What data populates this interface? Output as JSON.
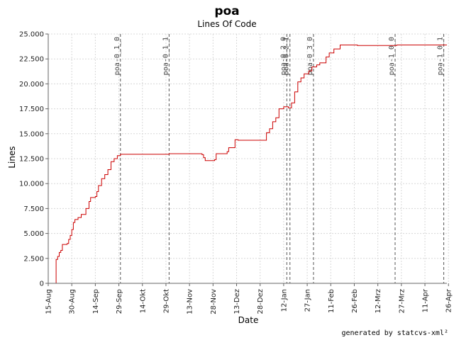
{
  "chart_data": {
    "type": "line",
    "title": "poa",
    "subtitle": "Lines Of Code",
    "xlabel": "Date",
    "ylabel": "Lines",
    "footer": "generated by statcvs-xml²",
    "x_start": "2002-08-15",
    "x_end": "2003-04-26",
    "xlim": [
      "2002-08-15",
      "2003-04-26"
    ],
    "ylim": [
      0,
      25000
    ],
    "grid": true,
    "line_color": "#cc0000",
    "x_ticks": [
      {
        "date": "2002-08-15",
        "label": "15-Aug"
      },
      {
        "date": "2002-08-30",
        "label": "30-Aug"
      },
      {
        "date": "2002-09-14",
        "label": "14-Sep"
      },
      {
        "date": "2002-09-29",
        "label": "29-Sep"
      },
      {
        "date": "2002-10-14",
        "label": "14-Okt"
      },
      {
        "date": "2002-10-29",
        "label": "29-Okt"
      },
      {
        "date": "2002-11-13",
        "label": "13-Nov"
      },
      {
        "date": "2002-11-28",
        "label": "28-Nov"
      },
      {
        "date": "2002-12-13",
        "label": "13-Dez"
      },
      {
        "date": "2002-12-28",
        "label": "28-Dez"
      },
      {
        "date": "2003-01-12",
        "label": "12-Jan"
      },
      {
        "date": "2003-01-27",
        "label": "27-Jan"
      },
      {
        "date": "2003-02-11",
        "label": "11-Feb"
      },
      {
        "date": "2003-02-26",
        "label": "26-Feb"
      },
      {
        "date": "2003-03-13",
        "label": "12-Mrz"
      },
      {
        "date": "2003-03-28",
        "label": "27-Mrz"
      },
      {
        "date": "2003-04-12",
        "label": "11-Apr"
      },
      {
        "date": "2003-04-27",
        "label": "26-Apr"
      }
    ],
    "y_ticks": [
      {
        "value": 0,
        "label": "0"
      },
      {
        "value": 2500,
        "label": "2.500"
      },
      {
        "value": 5000,
        "label": "5.000"
      },
      {
        "value": 7500,
        "label": "7.500"
      },
      {
        "value": 10000,
        "label": "10.000"
      },
      {
        "value": 12500,
        "label": "12.500"
      },
      {
        "value": 15000,
        "label": "15.000"
      },
      {
        "value": 17500,
        "label": "17.500"
      },
      {
        "value": 20000,
        "label": "20.000"
      },
      {
        "value": 22500,
        "label": "22.500"
      },
      {
        "value": 25000,
        "label": "25.000"
      }
    ],
    "markers": [
      {
        "date": "2002-09-30",
        "label": "poa-0_1_0"
      },
      {
        "date": "2002-10-31",
        "label": "poa-0_1_1"
      },
      {
        "date": "2003-01-14",
        "label": "poa-0_2_0"
      },
      {
        "date": "2003-01-16",
        "label": "poa-0_2_1"
      },
      {
        "date": "2003-01-31",
        "label": "poa-0_3_0"
      },
      {
        "date": "2003-03-24",
        "label": "poa-1_0_0"
      },
      {
        "date": "2003-04-24",
        "label": "poa-1_0_1"
      }
    ],
    "points": [
      [
        "2002-08-20",
        0
      ],
      [
        "2002-08-20",
        2400
      ],
      [
        "2002-08-21",
        2700
      ],
      [
        "2002-08-22",
        3100
      ],
      [
        "2002-08-23",
        3300
      ],
      [
        "2002-08-24",
        3900
      ],
      [
        "2002-08-27",
        4000
      ],
      [
        "2002-08-28",
        4400
      ],
      [
        "2002-08-29",
        4800
      ],
      [
        "2002-08-30",
        5400
      ],
      [
        "2002-08-31",
        6100
      ],
      [
        "2002-09-01",
        6400
      ],
      [
        "2002-09-03",
        6600
      ],
      [
        "2002-09-05",
        6900
      ],
      [
        "2002-09-08",
        7500
      ],
      [
        "2002-09-10",
        8200
      ],
      [
        "2002-09-11",
        8600
      ],
      [
        "2002-09-14",
        8700
      ],
      [
        "2002-09-15",
        9200
      ],
      [
        "2002-09-16",
        9800
      ],
      [
        "2002-09-18",
        10500
      ],
      [
        "2002-09-20",
        10900
      ],
      [
        "2002-09-22",
        11400
      ],
      [
        "2002-09-24",
        12200
      ],
      [
        "2002-09-26",
        12500
      ],
      [
        "2002-09-28",
        12800
      ],
      [
        "2002-09-30",
        12950
      ],
      [
        "2002-10-31",
        13000
      ],
      [
        "2002-11-21",
        12900
      ],
      [
        "2002-11-22",
        12600
      ],
      [
        "2002-11-23",
        12300
      ],
      [
        "2002-11-29",
        12400
      ],
      [
        "2002-11-30",
        13000
      ],
      [
        "2002-12-07",
        13200
      ],
      [
        "2002-12-08",
        13600
      ],
      [
        "2002-12-12",
        14400
      ],
      [
        "2002-12-14",
        14350
      ],
      [
        "2003-01-01",
        15100
      ],
      [
        "2003-01-03",
        15500
      ],
      [
        "2003-01-05",
        16200
      ],
      [
        "2003-01-07",
        16600
      ],
      [
        "2003-01-09",
        17500
      ],
      [
        "2003-01-12",
        17700
      ],
      [
        "2003-01-15",
        17600
      ],
      [
        "2003-01-17",
        18100
      ],
      [
        "2003-01-19",
        19200
      ],
      [
        "2003-01-21",
        20200
      ],
      [
        "2003-01-23",
        20600
      ],
      [
        "2003-01-25",
        21000
      ],
      [
        "2003-01-28",
        21300
      ],
      [
        "2003-01-30",
        21700
      ],
      [
        "2003-02-02",
        21900
      ],
      [
        "2003-02-04",
        22100
      ],
      [
        "2003-02-08",
        22700
      ],
      [
        "2003-02-10",
        23100
      ],
      [
        "2003-02-13",
        23500
      ],
      [
        "2003-02-17",
        23900
      ],
      [
        "2003-02-28",
        23850
      ],
      [
        "2003-03-25",
        23900
      ],
      [
        "2003-04-26",
        23900
      ]
    ]
  }
}
